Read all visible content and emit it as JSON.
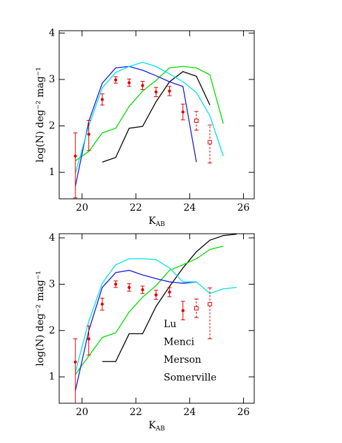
{
  "chart_data": [
    {
      "type": "line",
      "xlabel": {
        "text": "K",
        "sub": "AB"
      },
      "ylabel": "log(N) deg⁻² mag⁻¹",
      "xlim": [
        19.15,
        26.4
      ],
      "ylim": [
        0.43,
        4.05
      ],
      "xticks": [
        20,
        22,
        24,
        26
      ],
      "yticks": [
        1,
        2,
        3,
        4
      ],
      "legend": false,
      "series": [
        {
          "color": "#000000",
          "x": [
            20.75,
            21.25,
            21.75,
            22.25,
            22.75,
            23.25,
            23.75,
            24.25,
            24.75
          ],
          "values": [
            1.22,
            1.32,
            1.95,
            1.99,
            2.52,
            2.95,
            3.17,
            3.07,
            2.45
          ]
        },
        {
          "color": "#00dd00",
          "x": [
            19.75,
            20.25,
            20.75,
            21.25,
            21.75,
            22.25,
            22.75,
            23.25,
            23.75,
            24.25,
            24.75,
            25.25
          ],
          "values": [
            1.25,
            1.45,
            1.85,
            1.95,
            2.42,
            2.75,
            2.98,
            3.25,
            3.28,
            3.25,
            3.1,
            2.05
          ]
        },
        {
          "color": "#1a1adc",
          "x": [
            19.75,
            20.25,
            20.75,
            21.25,
            21.75,
            22.25,
            22.75,
            23.25,
            23.75,
            24.25
          ],
          "values": [
            0.7,
            2.1,
            2.92,
            3.25,
            3.28,
            3.2,
            3.08,
            2.95,
            2.85,
            1.22
          ]
        },
        {
          "color": "#00e0e8",
          "x": [
            19.75,
            20.25,
            20.75,
            21.25,
            21.75,
            22.25,
            22.75,
            23.25,
            23.75,
            24.25,
            24.75,
            25.25
          ],
          "values": [
            0.98,
            2.0,
            2.82,
            3.15,
            3.28,
            3.37,
            3.28,
            3.12,
            2.95,
            2.72,
            2.22,
            1.35
          ]
        }
      ],
      "observations": [
        {
          "marker": "filled",
          "color": "#e00000",
          "x": [
            19.75,
            20.25,
            20.75,
            21.25,
            21.75,
            22.25,
            22.75,
            23.25,
            23.75
          ],
          "values": [
            1.35,
            1.82,
            2.57,
            2.99,
            2.93,
            2.87,
            2.73,
            2.75,
            2.3
          ],
          "err_low": [
            0.9,
            0.35,
            0.12,
            0.07,
            0.08,
            0.09,
            0.1,
            0.1,
            0.17
          ],
          "err_high": [
            0.5,
            0.3,
            0.12,
            0.07,
            0.08,
            0.09,
            0.1,
            0.1,
            0.17
          ]
        },
        {
          "marker": "open",
          "color": "#e00000",
          "x": [
            24.25,
            24.75
          ],
          "values": [
            2.11,
            1.65
          ],
          "err_low": [
            0.2,
            0.45
          ],
          "err_high": [
            0.2,
            0.37
          ]
        }
      ]
    },
    {
      "type": "line",
      "xlabel": {
        "text": "K",
        "sub": "AB"
      },
      "ylabel": "log(N) deg⁻² mag⁻¹",
      "xlim": [
        19.15,
        26.4
      ],
      "ylim": [
        0.43,
        4.09
      ],
      "xticks": [
        20,
        22,
        24,
        26
      ],
      "yticks": [
        1,
        2,
        3,
        4
      ],
      "legend": true,
      "series": [
        {
          "name": "Lu",
          "color": "#000000",
          "x": [
            20.75,
            21.25,
            21.75,
            22.25,
            22.75,
            23.25,
            23.75,
            24.25,
            24.75,
            25.25,
            25.75
          ],
          "values": [
            1.33,
            1.33,
            1.93,
            1.93,
            2.52,
            2.95,
            3.35,
            3.7,
            3.95,
            4.05,
            4.08
          ]
        },
        {
          "name": "Menci",
          "color": "#00dd00",
          "x": [
            19.75,
            20.25,
            20.75,
            21.25,
            21.75,
            22.25,
            22.75,
            23.25,
            23.75,
            24.25,
            24.75,
            25.25
          ],
          "values": [
            1.05,
            1.45,
            1.85,
            1.95,
            2.4,
            2.72,
            2.97,
            3.3,
            3.42,
            3.55,
            3.75,
            3.82
          ]
        },
        {
          "name": "Merson",
          "color": "#1a1adc",
          "x": [
            19.75,
            20.25,
            20.75,
            21.25,
            21.75,
            22.25,
            22.75,
            23.25,
            23.75,
            24.25
          ],
          "values": [
            0.7,
            2.0,
            2.93,
            3.25,
            3.3,
            3.2,
            3.12,
            3.05,
            3.02,
            3.05
          ]
        },
        {
          "name": "Somerville",
          "color": "#00e0e8",
          "x": [
            19.75,
            20.25,
            20.75,
            21.25,
            21.75,
            22.25,
            22.75,
            23.25,
            23.75,
            24.25,
            24.75,
            25.25,
            25.75
          ],
          "values": [
            1.1,
            2.2,
            3.02,
            3.42,
            3.55,
            3.55,
            3.53,
            3.35,
            3.05,
            3.05,
            2.8,
            2.9,
            2.93
          ]
        }
      ],
      "observations": [
        {
          "marker": "filled",
          "color": "#e00000",
          "x": [
            19.75,
            20.25,
            20.75,
            21.25,
            21.75,
            22.25,
            22.75,
            23.25,
            23.75
          ],
          "values": [
            1.32,
            1.82,
            2.57,
            3.0,
            2.93,
            2.88,
            2.77,
            2.83,
            2.43
          ],
          "err_low": [
            0.9,
            0.35,
            0.13,
            0.07,
            0.08,
            0.08,
            0.1,
            0.1,
            0.2
          ],
          "err_high": [
            0.5,
            0.28,
            0.13,
            0.07,
            0.08,
            0.08,
            0.1,
            0.1,
            0.2
          ]
        },
        {
          "marker": "open",
          "color": "#e00000",
          "x": [
            24.25,
            24.75
          ],
          "values": [
            2.48,
            2.57
          ],
          "err_low": [
            0.2,
            0.75
          ],
          "err_high": [
            0.2,
            0.35
          ]
        }
      ]
    }
  ]
}
